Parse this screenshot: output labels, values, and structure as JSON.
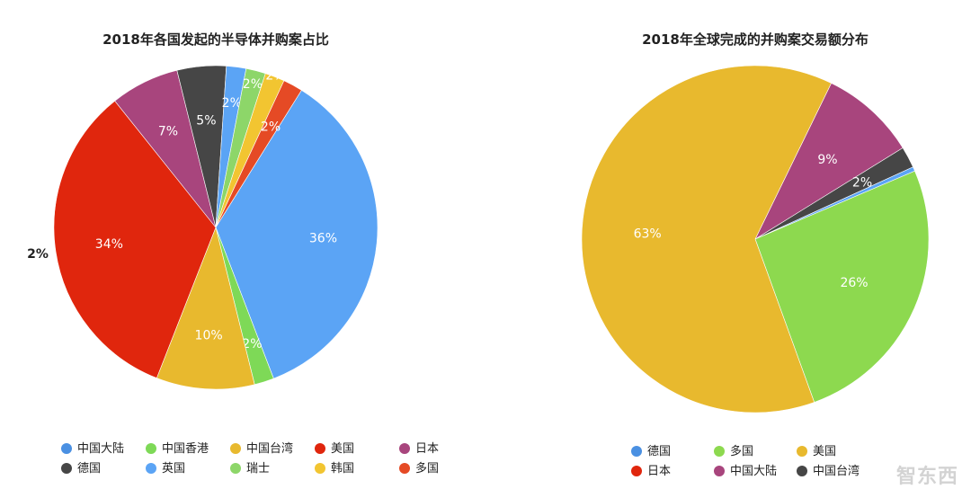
{
  "chart_data": [
    {
      "type": "pie",
      "title": "2018年各国发起的半导体并购案占比",
      "slices": [
        {
          "name": "中国大陆",
          "value": 36,
          "label": "36%",
          "color": "#5ba4f5"
        },
        {
          "name": "中国香港",
          "value": 2,
          "label": "2%",
          "color": "#7ed957"
        },
        {
          "name": "中国台湾",
          "value": 10,
          "label": "10%",
          "color": "#e8b92e"
        },
        {
          "name": "美国",
          "value": 34,
          "label": "34%",
          "color": "#e0260d"
        },
        {
          "name": "日本",
          "value": 7,
          "label": "7%",
          "color": "#a8457d"
        },
        {
          "name": "德国",
          "value": 5,
          "label": "5%",
          "color": "#464646"
        },
        {
          "name": "英国",
          "value": 2,
          "label": "2%",
          "color": "#5ba4f5"
        },
        {
          "name": "瑞士",
          "value": 2,
          "label": "2%",
          "color": "#8dd669"
        },
        {
          "name": "韩国",
          "value": 2,
          "label": "2%",
          "color": "#f2c531"
        },
        {
          "name": "多国",
          "value": 2,
          "label": "2%",
          "color": "#e54a25"
        }
      ],
      "outside_label": "2%",
      "legend": [
        {
          "name": "中国大陆",
          "color": "#4a90e2"
        },
        {
          "name": "中国香港",
          "color": "#7ed957"
        },
        {
          "name": "中国台湾",
          "color": "#e8b92e"
        },
        {
          "name": "美国",
          "color": "#e0260d"
        },
        {
          "name": "日本",
          "color": "#a8457d"
        },
        {
          "name": "德国",
          "color": "#464646"
        },
        {
          "name": "英国",
          "color": "#5ba4f5"
        },
        {
          "name": "瑞士",
          "color": "#8dd669"
        },
        {
          "name": "韩国",
          "color": "#f2c531"
        },
        {
          "name": "多国",
          "color": "#e54a25"
        }
      ],
      "legend_placement": "bottom"
    },
    {
      "type": "pie",
      "title": "2018年全球完成的并购案交易额分布",
      "slices": [
        {
          "name": "中国大陆",
          "value": 9,
          "label": "9%",
          "color": "#a8457d"
        },
        {
          "name": "中国台湾",
          "value": 2,
          "label": "2%",
          "color": "#464646"
        },
        {
          "name": "德国",
          "value": 0.4,
          "label": "",
          "color": "#5ba4f5"
        },
        {
          "name": "多国",
          "value": 26,
          "label": "26%",
          "color": "#8dd94f"
        },
        {
          "name": "美国",
          "value": 63,
          "label": "63%",
          "color": "#e8b92e"
        }
      ],
      "legend": [
        {
          "name": "德国",
          "color": "#4a90e2"
        },
        {
          "name": "多国",
          "color": "#8dd94f"
        },
        {
          "name": "美国",
          "color": "#e8b92e"
        },
        {
          "name": "日本",
          "color": "#e0260d"
        },
        {
          "name": "中国大陆",
          "color": "#a8457d"
        },
        {
          "name": "中国台湾",
          "color": "#464646"
        }
      ],
      "legend_placement": "bottom"
    }
  ],
  "watermark": "智东西"
}
